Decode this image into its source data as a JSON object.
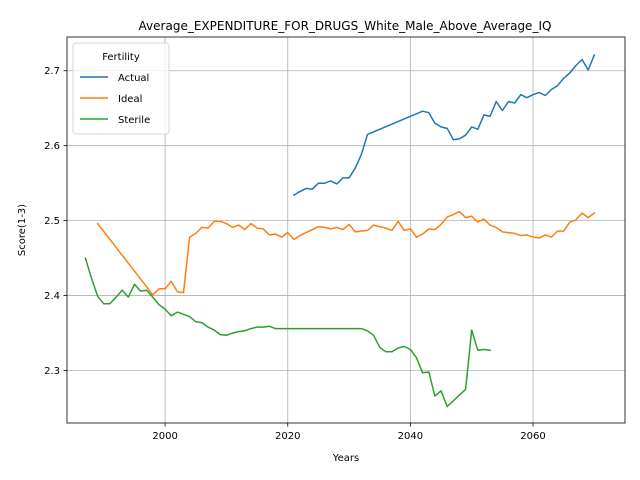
{
  "chart_data": {
    "type": "line",
    "title": "Average_EXPENDITURE_FOR_DRUGS_White_Male_Above_Average_IQ",
    "xlabel": "Years",
    "ylabel": "Score(1-3)",
    "xlim": [
      1984,
      2075
    ],
    "ylim": [
      2.23,
      2.745
    ],
    "xticks": [
      2000,
      2020,
      2040,
      2060
    ],
    "yticks": [
      2.3,
      2.4,
      2.5,
      2.6,
      2.7
    ],
    "grid": true,
    "legend": {
      "title": "Fertility",
      "placement": "top-left"
    },
    "series": [
      {
        "name": "Actual",
        "color": "#1f77b4",
        "points": [
          [
            2021,
            2.534
          ],
          [
            2022,
            2.539
          ],
          [
            2023,
            2.543
          ],
          [
            2024,
            2.542
          ],
          [
            2025,
            2.55
          ],
          [
            2026,
            2.55
          ],
          [
            2027,
            2.553
          ],
          [
            2028,
            2.549
          ],
          [
            2029,
            2.557
          ],
          [
            2030,
            2.557
          ],
          [
            2031,
            2.57
          ],
          [
            2032,
            2.588
          ],
          [
            2033,
            2.615
          ],
          [
            2042,
            2.646
          ],
          [
            2043,
            2.644
          ],
          [
            2044,
            2.63
          ],
          [
            2045,
            2.625
          ],
          [
            2046,
            2.623
          ],
          [
            2047,
            2.608
          ],
          [
            2048,
            2.609
          ],
          [
            2049,
            2.614
          ],
          [
            2050,
            2.625
          ],
          [
            2051,
            2.622
          ],
          [
            2052,
            2.641
          ],
          [
            2053,
            2.639
          ],
          [
            2054,
            2.659
          ],
          [
            2055,
            2.647
          ],
          [
            2056,
            2.659
          ],
          [
            2057,
            2.657
          ],
          [
            2058,
            2.668
          ],
          [
            2059,
            2.664
          ],
          [
            2060,
            2.668
          ],
          [
            2061,
            2.671
          ],
          [
            2062,
            2.667
          ],
          [
            2063,
            2.675
          ],
          [
            2064,
            2.68
          ],
          [
            2065,
            2.69
          ],
          [
            2066,
            2.697
          ],
          [
            2067,
            2.707
          ],
          [
            2068,
            2.715
          ],
          [
            2069,
            2.701
          ],
          [
            2070,
            2.721
          ]
        ]
      },
      {
        "name": "Ideal",
        "color": "#ff7f0e",
        "points": [
          [
            1989,
            2.496
          ],
          [
            1998,
            2.401
          ],
          [
            1999,
            2.409
          ],
          [
            2000,
            2.409
          ],
          [
            2001,
            2.419
          ],
          [
            2002,
            2.405
          ],
          [
            2003,
            2.404
          ],
          [
            2004,
            2.478
          ],
          [
            2005,
            2.483
          ],
          [
            2006,
            2.491
          ],
          [
            2007,
            2.49
          ],
          [
            2008,
            2.499
          ],
          [
            2009,
            2.499
          ],
          [
            2010,
            2.496
          ],
          [
            2011,
            2.491
          ],
          [
            2012,
            2.494
          ],
          [
            2013,
            2.488
          ],
          [
            2014,
            2.496
          ],
          [
            2015,
            2.49
          ],
          [
            2016,
            2.489
          ],
          [
            2017,
            2.481
          ],
          [
            2018,
            2.482
          ],
          [
            2019,
            2.478
          ],
          [
            2020,
            2.484
          ],
          [
            2021,
            2.475
          ],
          [
            2022,
            2.48
          ],
          [
            2023,
            2.484
          ],
          [
            2024,
            2.488
          ],
          [
            2025,
            2.492
          ],
          [
            2026,
            2.491
          ],
          [
            2027,
            2.489
          ],
          [
            2028,
            2.491
          ],
          [
            2029,
            2.488
          ],
          [
            2030,
            2.495
          ],
          [
            2031,
            2.485
          ],
          [
            2032,
            2.486
          ],
          [
            2033,
            2.487
          ],
          [
            2034,
            2.494
          ],
          [
            2035,
            2.492
          ],
          [
            2036,
            2.49
          ],
          [
            2037,
            2.487
          ],
          [
            2038,
            2.499
          ],
          [
            2039,
            2.487
          ],
          [
            2040,
            2.489
          ],
          [
            2041,
            2.478
          ],
          [
            2042,
            2.482
          ],
          [
            2043,
            2.489
          ],
          [
            2044,
            2.488
          ],
          [
            2045,
            2.495
          ],
          [
            2046,
            2.505
          ],
          [
            2047,
            2.508
          ],
          [
            2048,
            2.512
          ],
          [
            2049,
            2.504
          ],
          [
            2050,
            2.506
          ],
          [
            2051,
            2.498
          ],
          [
            2052,
            2.502
          ],
          [
            2053,
            2.494
          ],
          [
            2054,
            2.491
          ],
          [
            2055,
            2.485
          ],
          [
            2056,
            2.484
          ],
          [
            2057,
            2.483
          ],
          [
            2058,
            2.48
          ],
          [
            2059,
            2.481
          ],
          [
            2060,
            2.478
          ],
          [
            2061,
            2.477
          ],
          [
            2062,
            2.481
          ],
          [
            2063,
            2.478
          ],
          [
            2064,
            2.486
          ],
          [
            2065,
            2.486
          ],
          [
            2066,
            2.498
          ],
          [
            2067,
            2.501
          ],
          [
            2068,
            2.51
          ],
          [
            2069,
            2.504
          ],
          [
            2070,
            2.51
          ]
        ]
      },
      {
        "name": "Sterile",
        "color": "#2ca02c",
        "points": [
          [
            1987,
            2.45
          ],
          [
            1988,
            2.423
          ],
          [
            1989,
            2.399
          ],
          [
            1990,
            2.389
          ],
          [
            1991,
            2.389
          ],
          [
            1992,
            2.398
          ],
          [
            1993,
            2.407
          ],
          [
            1994,
            2.398
          ],
          [
            1995,
            2.415
          ],
          [
            1996,
            2.406
          ],
          [
            1997,
            2.407
          ],
          [
            1998,
            2.398
          ],
          [
            1999,
            2.388
          ],
          [
            2000,
            2.382
          ],
          [
            2001,
            2.373
          ],
          [
            2002,
            2.378
          ],
          [
            2003,
            2.375
          ],
          [
            2004,
            2.372
          ],
          [
            2005,
            2.365
          ],
          [
            2006,
            2.364
          ],
          [
            2007,
            2.358
          ],
          [
            2008,
            2.354
          ],
          [
            2009,
            2.348
          ],
          [
            2010,
            2.347
          ],
          [
            2011,
            2.35
          ],
          [
            2012,
            2.352
          ],
          [
            2013,
            2.353
          ],
          [
            2014,
            2.356
          ],
          [
            2015,
            2.358
          ],
          [
            2016,
            2.358
          ],
          [
            2017,
            2.359
          ],
          [
            2018,
            2.356
          ],
          [
            2019,
            2.356
          ],
          [
            2020,
            2.356
          ],
          [
            2032,
            2.356
          ],
          [
            2033,
            2.353
          ],
          [
            2034,
            2.347
          ],
          [
            2035,
            2.331
          ],
          [
            2036,
            2.325
          ],
          [
            2037,
            2.325
          ],
          [
            2038,
            2.33
          ],
          [
            2039,
            2.332
          ],
          [
            2040,
            2.328
          ],
          [
            2041,
            2.317
          ],
          [
            2042,
            2.297
          ],
          [
            2043,
            2.298
          ],
          [
            2044,
            2.266
          ],
          [
            2045,
            2.273
          ],
          [
            2046,
            2.252
          ],
          [
            2049,
            2.275
          ],
          [
            2050,
            2.354
          ],
          [
            2051,
            2.327
          ],
          [
            2052,
            2.328
          ],
          [
            2053,
            2.327
          ]
        ]
      }
    ]
  }
}
